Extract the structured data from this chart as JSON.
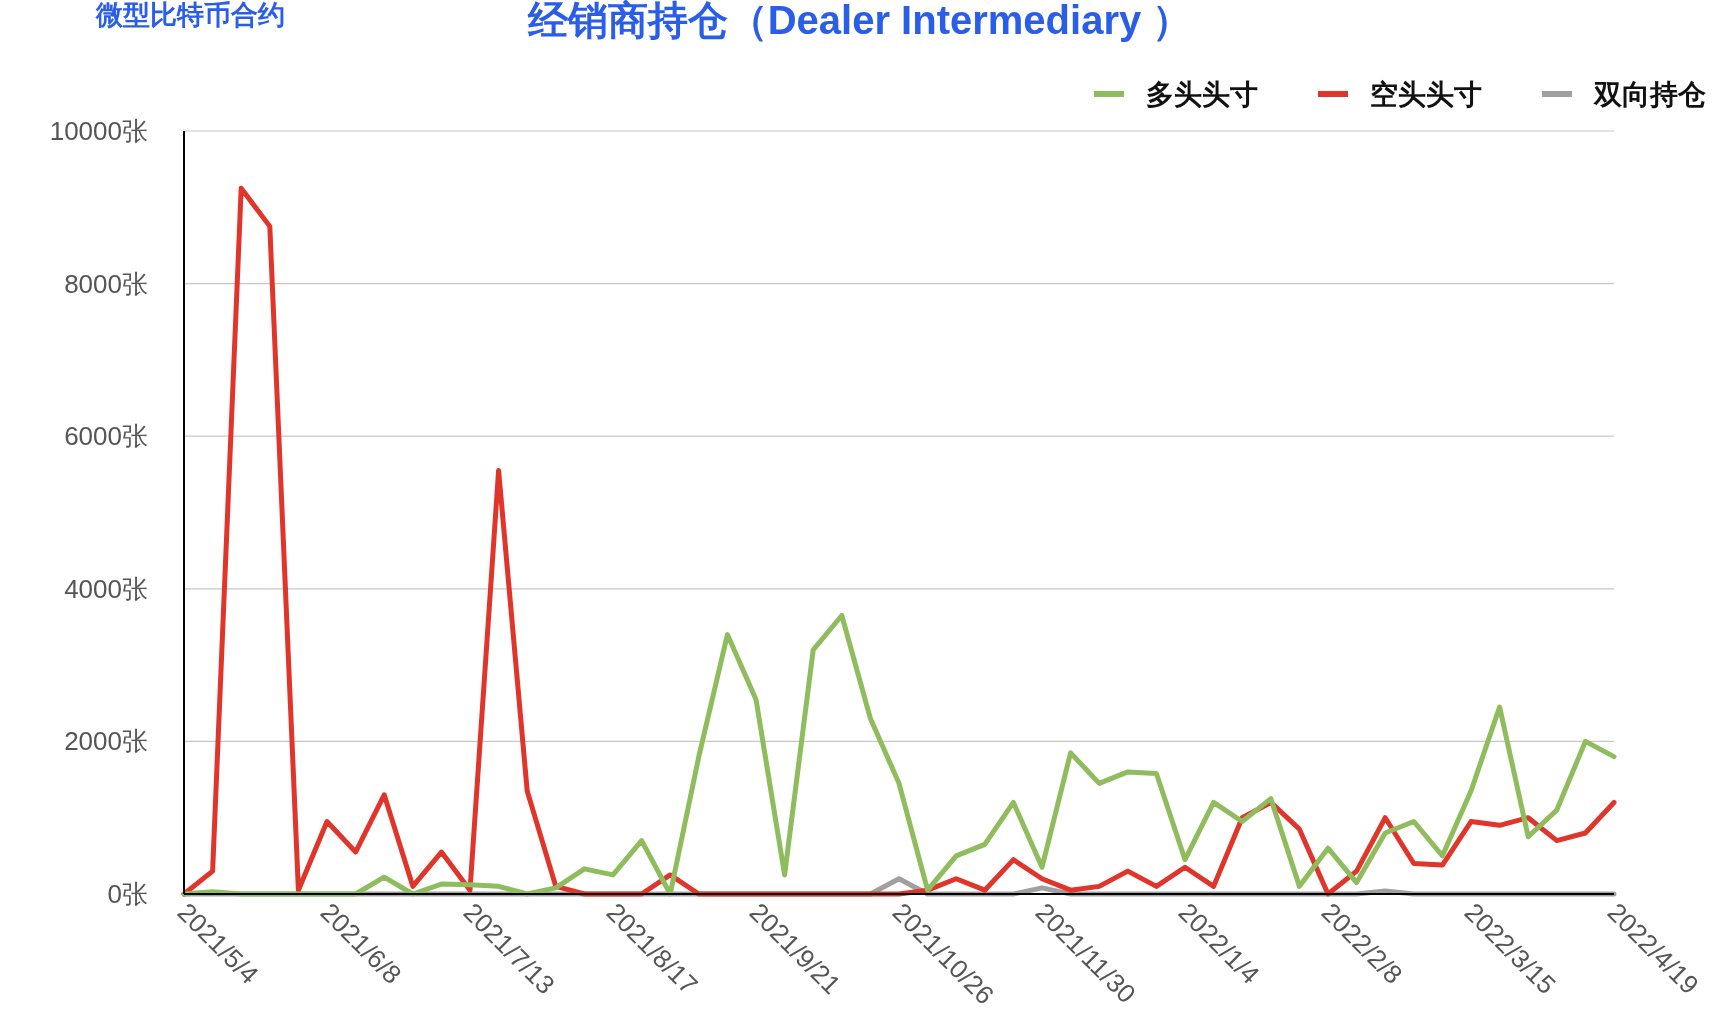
{
  "chart_data": {
    "type": "line",
    "title": "经销商持仓（Dealer Intermediary ）",
    "subtitle": "微型比特币合约",
    "categories": [
      "2021/5/4",
      null,
      null,
      null,
      null,
      "2021/6/8",
      null,
      null,
      null,
      null,
      "2021/7/13",
      null,
      null,
      null,
      null,
      "2021/8/17",
      null,
      null,
      null,
      null,
      "2021/9/21",
      null,
      null,
      null,
      null,
      "2021/10/26",
      null,
      null,
      null,
      null,
      "2021/11/30",
      null,
      null,
      null,
      null,
      "2022/1/4",
      null,
      null,
      null,
      null,
      "2022/2/8",
      null,
      null,
      null,
      null,
      "2022/3/15",
      null,
      null,
      null,
      null,
      "2022/4/19"
    ],
    "series": [
      {
        "name": "多头头寸",
        "color": "#8fbc5c",
        "values": [
          0,
          30,
          0,
          0,
          0,
          0,
          0,
          220,
          0,
          130,
          120,
          100,
          0,
          80,
          330,
          250,
          700,
          0,
          1800,
          3400,
          2550,
          250,
          3200,
          3650,
          2300,
          1450,
          50,
          500,
          650,
          1200,
          350,
          1850,
          1450,
          1600,
          1580,
          450,
          1200,
          950,
          1250,
          100,
          600,
          150,
          800,
          950,
          500,
          1350,
          2450,
          750,
          1100,
          2000,
          1800
        ]
      },
      {
        "name": "空头头寸",
        "color": "#e0352b",
        "values": [
          0,
          300,
          9250,
          8750,
          50,
          950,
          550,
          1300,
          100,
          550,
          50,
          5550,
          1350,
          100,
          0,
          0,
          0,
          250,
          0,
          0,
          0,
          0,
          0,
          0,
          0,
          0,
          50,
          200,
          50,
          450,
          200,
          50,
          100,
          300,
          100,
          350,
          100,
          1000,
          1200,
          850,
          0,
          300,
          1000,
          400,
          380,
          950,
          900,
          1000,
          700,
          800,
          1200
        ]
      },
      {
        "name": "双向持仓",
        "color": "#a0a0a0",
        "values": [
          0,
          0,
          0,
          0,
          0,
          0,
          0,
          0,
          0,
          0,
          0,
          0,
          0,
          0,
          0,
          0,
          0,
          0,
          0,
          0,
          0,
          0,
          0,
          0,
          0,
          200,
          0,
          0,
          0,
          0,
          80,
          0,
          0,
          0,
          0,
          0,
          0,
          0,
          0,
          0,
          0,
          0,
          40,
          0,
          0,
          0,
          0,
          0,
          0,
          0,
          0
        ]
      }
    ],
    "ylim": [
      0,
      10000
    ],
    "yticks": [
      {
        "value": 0,
        "label": "0张"
      },
      {
        "value": 2000,
        "label": "2000张"
      },
      {
        "value": 4000,
        "label": "4000张"
      },
      {
        "value": 6000,
        "label": "6000张"
      },
      {
        "value": 8000,
        "label": "8000张"
      },
      {
        "value": 10000,
        "label": "10000张"
      }
    ],
    "grid": "y",
    "legend": "top right"
  }
}
